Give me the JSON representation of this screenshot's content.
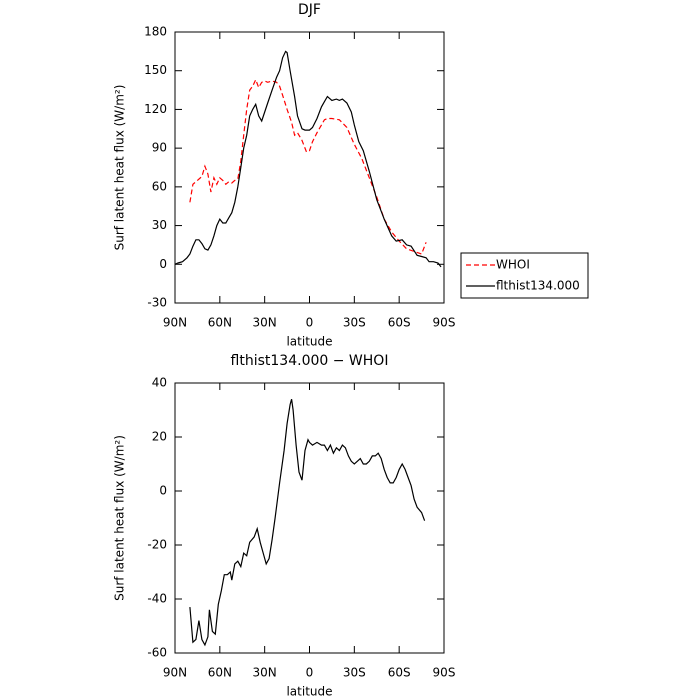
{
  "chart_data": [
    {
      "type": "line",
      "title": "DJF",
      "xlabel": "latitude",
      "ylabel": "Surf latent heat flux (W/m²)",
      "xlim": [
        90,
        -90
      ],
      "xticks": [
        {
          "value": 90,
          "label": "90N"
        },
        {
          "value": 60,
          "label": "60N"
        },
        {
          "value": 30,
          "label": "30N"
        },
        0,
        {
          "value": -30,
          "label": "30S"
        },
        {
          "value": -60,
          "label": "60S"
        },
        {
          "value": -90,
          "label": "90S"
        }
      ],
      "ylim": [
        -30,
        180
      ],
      "yticks": [
        -30,
        0,
        30,
        60,
        90,
        120,
        150,
        180
      ],
      "legend": "right",
      "series": [
        {
          "name": "WHOI",
          "color": "#ff0000",
          "linestyle": "dashed",
          "x": [
            80,
            78,
            75,
            72,
            70,
            68,
            66,
            64,
            62,
            60,
            58,
            56,
            54,
            52,
            50,
            48,
            46,
            44,
            42,
            40,
            38,
            36,
            34,
            32,
            30,
            28,
            25,
            22,
            20,
            18,
            15,
            12,
            10,
            8,
            5,
            2,
            0,
            -2,
            -5,
            -8,
            -10,
            -12,
            -15,
            -20,
            -25,
            -30,
            -35,
            -40,
            -45,
            -50,
            -55,
            -60,
            -65,
            -70,
            -75,
            -78
          ],
          "values": [
            48,
            62,
            65,
            68,
            76,
            70,
            56,
            67,
            62,
            67,
            65,
            62,
            64,
            63,
            65,
            66,
            80,
            100,
            120,
            135,
            138,
            143,
            137,
            141,
            142,
            141,
            142,
            141,
            138,
            131,
            120,
            110,
            100,
            102,
            96,
            87,
            88,
            95,
            102,
            108,
            112,
            113,
            113,
            112,
            106,
            93,
            82,
            67,
            52,
            35,
            25,
            18,
            12,
            10,
            8,
            17
          ]
        },
        {
          "name": "flthist134.000",
          "color": "#000000",
          "linestyle": "solid",
          "x": [
            90,
            88,
            85,
            82,
            80,
            78,
            76,
            74,
            72,
            70,
            68,
            66,
            64,
            62,
            60,
            58,
            56,
            54,
            52,
            50,
            48,
            46,
            44,
            42,
            40,
            38,
            36,
            34,
            32,
            30,
            28,
            25,
            22,
            20,
            18,
            16,
            15,
            13,
            10,
            8,
            5,
            3,
            0,
            -2,
            -5,
            -8,
            -10,
            -12,
            -15,
            -18,
            -20,
            -22,
            -25,
            -28,
            -30,
            -33,
            -36,
            -40,
            -45,
            -50,
            -55,
            -58,
            -62,
            -65,
            -68,
            -72,
            -75,
            -78,
            -80,
            -83,
            -86,
            -88
          ],
          "values": [
            0,
            1,
            2,
            5,
            8,
            14,
            19,
            19,
            16,
            12,
            11,
            15,
            22,
            30,
            35,
            32,
            32,
            36,
            40,
            48,
            60,
            75,
            90,
            100,
            115,
            120,
            124,
            115,
            111,
            118,
            125,
            135,
            145,
            150,
            160,
            165,
            164,
            150,
            130,
            115,
            105,
            104,
            104,
            106,
            113,
            122,
            126,
            130,
            127,
            128,
            127,
            128,
            125,
            118,
            108,
            95,
            88,
            72,
            50,
            35,
            22,
            18,
            19,
            15,
            14,
            7,
            6,
            5,
            2,
            2,
            1,
            -2
          ]
        }
      ]
    },
    {
      "type": "line",
      "title": "flthist134.000 − WHOI",
      "xlabel": "latitude",
      "ylabel": "Surf latent heat flux (W/m²)",
      "xlim": [
        90,
        -90
      ],
      "xticks": [
        {
          "value": 90,
          "label": "90N"
        },
        {
          "value": 60,
          "label": "60N"
        },
        {
          "value": 30,
          "label": "30N"
        },
        0,
        {
          "value": -30,
          "label": "30S"
        },
        {
          "value": -60,
          "label": "60S"
        },
        {
          "value": -90,
          "label": "90S"
        }
      ],
      "ylim": [
        -60,
        40
      ],
      "yticks": [
        -60,
        -40,
        -20,
        0,
        20,
        40
      ],
      "series": [
        {
          "color": "#000000",
          "linestyle": "solid",
          "x": [
            80,
            78,
            76,
            74,
            72,
            70,
            68,
            67,
            65,
            63,
            61,
            59,
            57,
            55,
            53,
            52,
            50,
            48,
            46,
            44,
            42,
            40,
            37,
            35,
            33,
            31,
            29,
            27,
            25,
            23,
            20,
            17,
            15,
            13,
            12,
            11,
            9,
            7,
            5,
            3,
            1,
            0,
            -2,
            -5,
            -8,
            -10,
            -12,
            -14,
            -16,
            -18,
            -20,
            -22,
            -24,
            -26,
            -28,
            -30,
            -32,
            -34,
            -36,
            -38,
            -40,
            -42,
            -44,
            -46,
            -48,
            -50,
            -52,
            -54,
            -56,
            -58,
            -60,
            -62,
            -64,
            -66,
            -68,
            -70,
            -72,
            -75,
            -77
          ],
          "values": [
            -43,
            -56,
            -55,
            -48,
            -55,
            -57,
            -54,
            -44,
            -52,
            -53,
            -42,
            -37,
            -31,
            -31,
            -30,
            -33,
            -27,
            -26,
            -28,
            -23,
            -24,
            -19,
            -17,
            -14,
            -19,
            -23,
            -27,
            -25,
            -18,
            -10,
            3,
            15,
            25,
            32,
            34,
            30,
            17,
            7,
            4,
            15,
            19,
            18,
            17,
            18,
            17,
            17,
            15,
            17,
            14,
            16,
            15,
            17,
            16,
            13,
            11,
            10,
            11,
            12,
            10,
            10,
            11,
            13,
            13,
            14,
            12,
            8,
            5,
            3,
            3,
            5,
            8,
            10,
            8,
            5,
            2,
            -3,
            -6,
            -8,
            -11
          ]
        }
      ]
    }
  ]
}
